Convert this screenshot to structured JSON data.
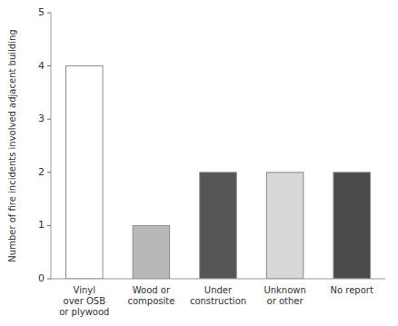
{
  "chart_data": {
    "type": "bar",
    "categories": [
      "Vinyl\nover OSB\nor plywood",
      "Wood or\ncomposite",
      "Under\nconstruction",
      "Unknown\nor other",
      "No report"
    ],
    "values": [
      4,
      1,
      2,
      2,
      2
    ],
    "colors": [
      "#ffffff",
      "#b8b8b8",
      "#555555",
      "#d8d8d8",
      "#4a4a4a"
    ],
    "ylabel": "Number of fire incidents involved adjacent building",
    "ylim": [
      0,
      5
    ],
    "yticks": [
      0,
      1,
      2,
      3,
      4,
      5
    ],
    "grid": false
  }
}
